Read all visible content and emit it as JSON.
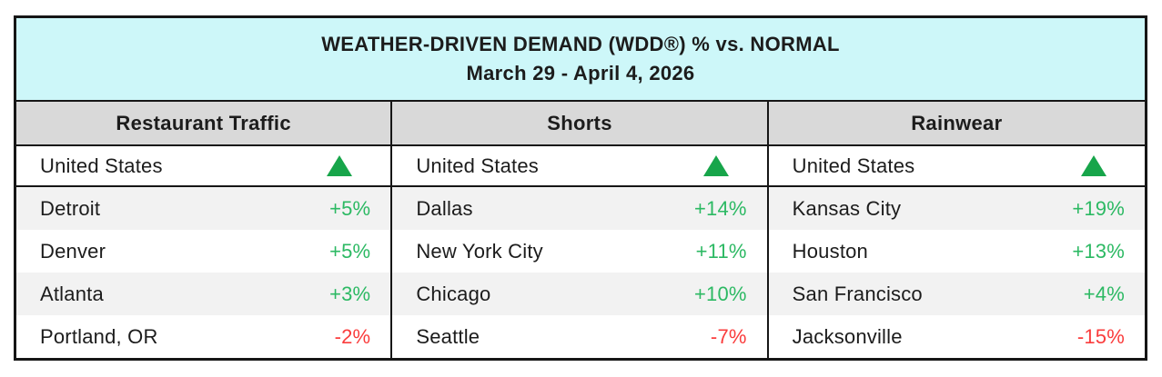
{
  "title": {
    "line1": "WEATHER-DRIVEN DEMAND (WDD®) % vs. NORMAL",
    "line2": "March 29 - April 4, 2026"
  },
  "columns": [
    {
      "header": "Restaurant Traffic",
      "national": {
        "label": "United States",
        "direction": "up",
        "icon": "up-triangle"
      },
      "rows": [
        {
          "city": "Detroit",
          "value": "+5%"
        },
        {
          "city": "Denver",
          "value": "+5%"
        },
        {
          "city": "Atlanta",
          "value": "+3%"
        },
        {
          "city": "Portland, OR",
          "value": "-2%"
        }
      ]
    },
    {
      "header": "Shorts",
      "national": {
        "label": "United States",
        "direction": "up",
        "icon": "up-triangle"
      },
      "rows": [
        {
          "city": "Dallas",
          "value": "+14%"
        },
        {
          "city": "New York City",
          "value": "+11%"
        },
        {
          "city": "Chicago",
          "value": "+10%"
        },
        {
          "city": "Seattle",
          "value": "-7%"
        }
      ]
    },
    {
      "header": "Rainwear",
      "national": {
        "label": "United States",
        "direction": "up",
        "icon": "up-triangle"
      },
      "rows": [
        {
          "city": "Kansas City",
          "value": "+19%"
        },
        {
          "city": "Houston",
          "value": "+13%"
        },
        {
          "city": "San Francisco",
          "value": "+4%"
        },
        {
          "city": "Jacksonville",
          "value": "-15%"
        }
      ]
    }
  ],
  "colors": {
    "header_cyan": "#CDF7F9",
    "header_gray": "#D9D9D9",
    "row_shade": "#F2F2F2",
    "positive_green": "#2CB963",
    "negative_red": "#FA3C3C",
    "triangle_green": "#17A54A",
    "border_black": "#161616"
  },
  "chart_data": {
    "type": "table",
    "title": "WEATHER-DRIVEN DEMAND (WDD®) % vs. NORMAL",
    "subtitle": "March 29 - April 4, 2026",
    "unit": "percent vs. normal",
    "sections": [
      {
        "name": "Restaurant Traffic",
        "national": {
          "region": "United States",
          "direction": "up"
        },
        "rows": [
          {
            "city": "Detroit",
            "value": 5
          },
          {
            "city": "Denver",
            "value": 5
          },
          {
            "city": "Atlanta",
            "value": 3
          },
          {
            "city": "Portland, OR",
            "value": -2
          }
        ]
      },
      {
        "name": "Shorts",
        "national": {
          "region": "United States",
          "direction": "up"
        },
        "rows": [
          {
            "city": "Dallas",
            "value": 14
          },
          {
            "city": "New York City",
            "value": 11
          },
          {
            "city": "Chicago",
            "value": 10
          },
          {
            "city": "Seattle",
            "value": -7
          }
        ]
      },
      {
        "name": "Rainwear",
        "national": {
          "region": "United States",
          "direction": "up"
        },
        "rows": [
          {
            "city": "Kansas City",
            "value": 19
          },
          {
            "city": "Houston",
            "value": 13
          },
          {
            "city": "San Francisco",
            "value": 4
          },
          {
            "city": "Jacksonville",
            "value": -15
          }
        ]
      }
    ],
    "value_color_rule": "positive=green, negative=red"
  }
}
